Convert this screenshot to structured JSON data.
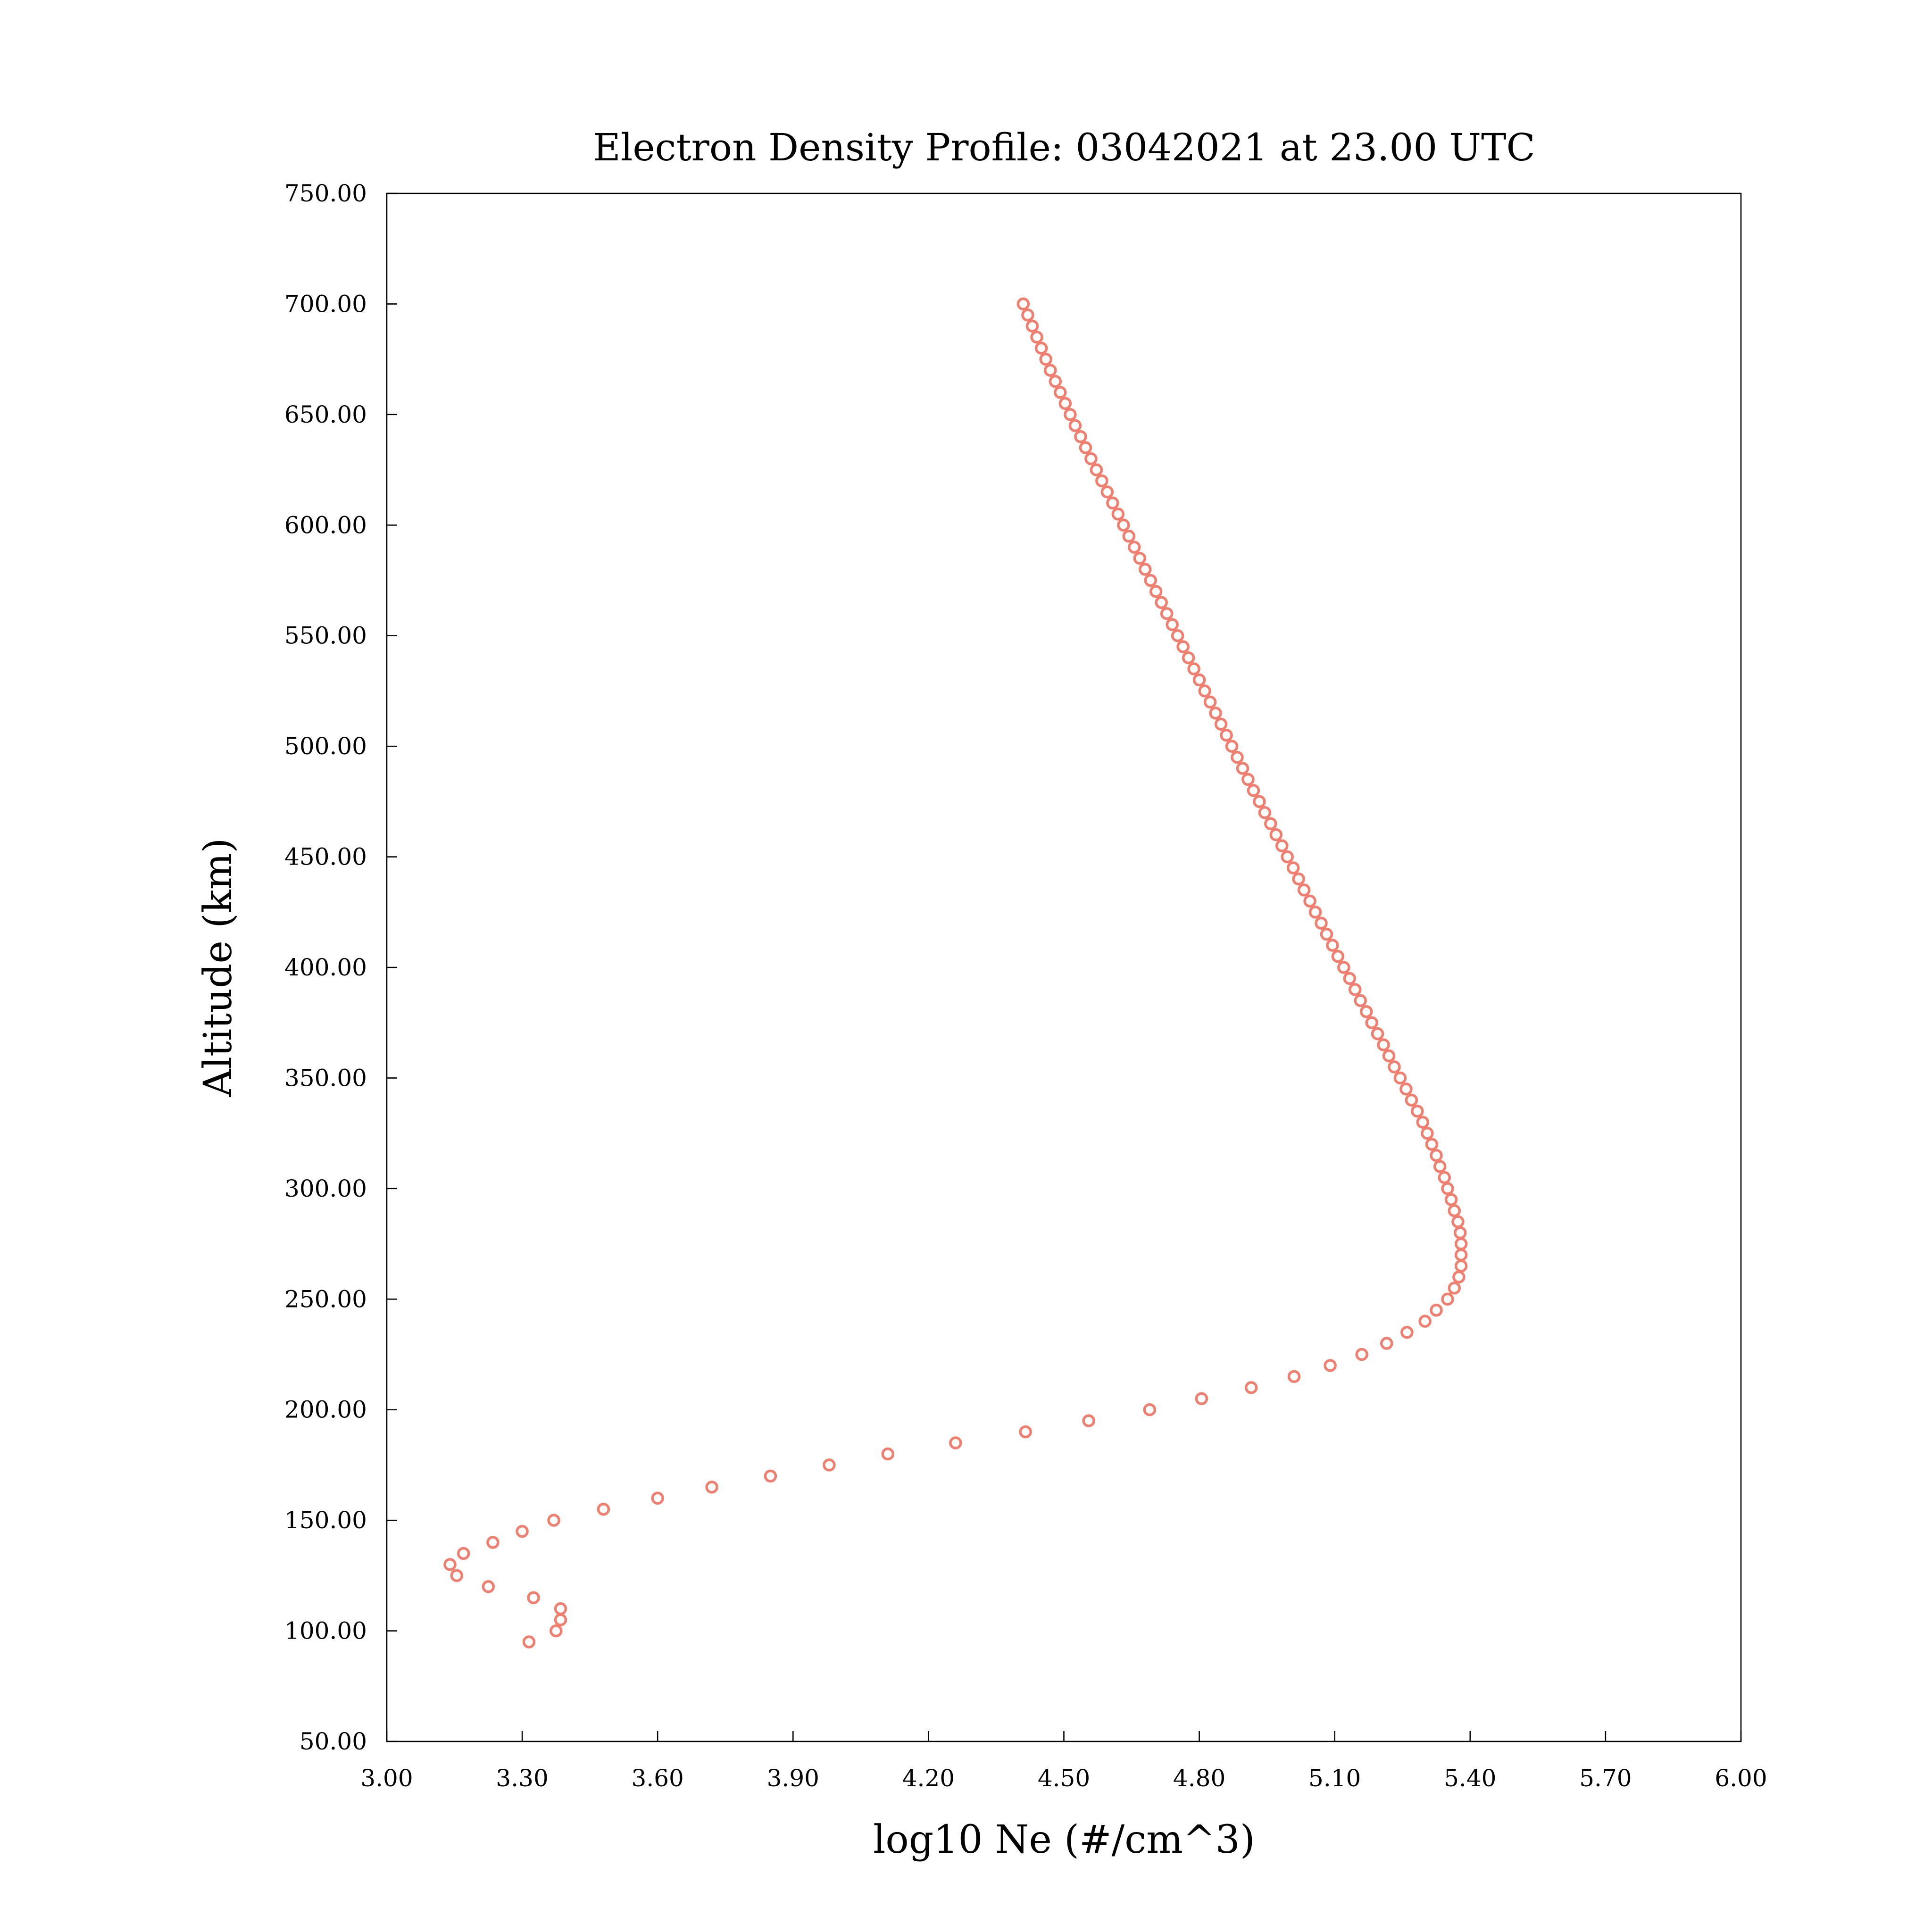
{
  "chart_data": {
    "type": "scatter",
    "title": "Electron Density Profile: 03042021 at 23.00 UTC",
    "xlabel": "log10 Ne (#/cm^3)",
    "ylabel": "Altitude (km)",
    "xlim": [
      3.0,
      6.0
    ],
    "ylim": [
      50,
      750
    ],
    "xticks": [
      "3.00",
      "3.30",
      "3.60",
      "3.90",
      "4.20",
      "4.50",
      "4.80",
      "5.10",
      "5.40",
      "5.70",
      "6.00"
    ],
    "yticks": [
      "50.00",
      "100.00",
      "150.00",
      "200.00",
      "250.00",
      "300.00",
      "350.00",
      "400.00",
      "450.00",
      "500.00",
      "550.00",
      "600.00",
      "650.00",
      "700.00",
      "750.00"
    ],
    "grid": false,
    "marker": "open-circle",
    "color": "#f07f70",
    "points": [
      [
        3.315,
        95
      ],
      [
        3.375,
        100
      ],
      [
        3.385,
        105
      ],
      [
        3.385,
        110
      ],
      [
        3.325,
        115
      ],
      [
        3.225,
        120
      ],
      [
        3.155,
        125
      ],
      [
        3.14,
        130
      ],
      [
        3.17,
        135
      ],
      [
        3.235,
        140
      ],
      [
        3.3,
        145
      ],
      [
        3.37,
        150
      ],
      [
        3.48,
        155
      ],
      [
        3.6,
        160
      ],
      [
        3.72,
        165
      ],
      [
        3.85,
        170
      ],
      [
        3.98,
        175
      ],
      [
        4.11,
        180
      ],
      [
        4.26,
        185
      ],
      [
        4.415,
        190
      ],
      [
        4.555,
        195
      ],
      [
        4.69,
        200
      ],
      [
        4.805,
        205
      ],
      [
        4.915,
        210
      ],
      [
        5.01,
        215
      ],
      [
        5.09,
        220
      ],
      [
        5.16,
        225
      ],
      [
        5.215,
        230
      ],
      [
        5.26,
        235
      ],
      [
        5.3,
        240
      ],
      [
        5.325,
        245
      ],
      [
        5.35,
        250
      ],
      [
        5.365,
        255
      ],
      [
        5.375,
        260
      ],
      [
        5.38,
        265
      ],
      [
        5.38,
        270
      ],
      [
        5.38,
        275
      ],
      [
        5.378,
        280
      ],
      [
        5.373,
        285
      ],
      [
        5.365,
        290
      ],
      [
        5.358,
        295
      ],
      [
        5.35,
        300
      ],
      [
        5.343,
        305
      ],
      [
        5.333,
        310
      ],
      [
        5.325,
        315
      ],
      [
        5.315,
        320
      ],
      [
        5.305,
        325
      ],
      [
        5.295,
        330
      ],
      [
        5.283,
        335
      ],
      [
        5.27,
        340
      ],
      [
        5.258,
        345
      ],
      [
        5.245,
        350
      ],
      [
        5.232,
        355
      ],
      [
        5.22,
        360
      ],
      [
        5.208,
        365
      ],
      [
        5.195,
        370
      ],
      [
        5.182,
        375
      ],
      [
        5.17,
        380
      ],
      [
        5.157,
        385
      ],
      [
        5.145,
        390
      ],
      [
        5.133,
        395
      ],
      [
        5.12,
        400
      ],
      [
        5.107,
        405
      ],
      [
        5.095,
        410
      ],
      [
        5.082,
        415
      ],
      [
        5.07,
        420
      ],
      [
        5.057,
        425
      ],
      [
        5.045,
        430
      ],
      [
        5.032,
        435
      ],
      [
        5.02,
        440
      ],
      [
        5.008,
        445
      ],
      [
        4.995,
        450
      ],
      [
        4.983,
        455
      ],
      [
        4.97,
        460
      ],
      [
        4.958,
        465
      ],
      [
        4.945,
        470
      ],
      [
        4.933,
        475
      ],
      [
        4.92,
        480
      ],
      [
        4.908,
        485
      ],
      [
        4.896,
        490
      ],
      [
        4.884,
        495
      ],
      [
        4.872,
        500
      ],
      [
        4.86,
        505
      ],
      [
        4.848,
        510
      ],
      [
        4.836,
        515
      ],
      [
        4.824,
        520
      ],
      [
        4.812,
        525
      ],
      [
        4.8,
        530
      ],
      [
        4.788,
        535
      ],
      [
        4.776,
        540
      ],
      [
        4.764,
        545
      ],
      [
        4.752,
        550
      ],
      [
        4.74,
        555
      ],
      [
        4.728,
        560
      ],
      [
        4.716,
        565
      ],
      [
        4.704,
        570
      ],
      [
        4.692,
        575
      ],
      [
        4.68,
        580
      ],
      [
        4.668,
        585
      ],
      [
        4.656,
        590
      ],
      [
        4.644,
        595
      ],
      [
        4.632,
        600
      ],
      [
        4.62,
        605
      ],
      [
        4.608,
        610
      ],
      [
        4.596,
        615
      ],
      [
        4.584,
        620
      ],
      [
        4.572,
        625
      ],
      [
        4.56,
        630
      ],
      [
        4.548,
        635
      ],
      [
        4.537,
        640
      ],
      [
        4.525,
        645
      ],
      [
        4.514,
        650
      ],
      [
        4.503,
        655
      ],
      [
        4.492,
        660
      ],
      [
        4.481,
        665
      ],
      [
        4.47,
        670
      ],
      [
        4.46,
        675
      ],
      [
        4.45,
        680
      ],
      [
        4.44,
        685
      ],
      [
        4.43,
        690
      ],
      [
        4.42,
        695
      ],
      [
        4.41,
        700
      ]
    ]
  }
}
